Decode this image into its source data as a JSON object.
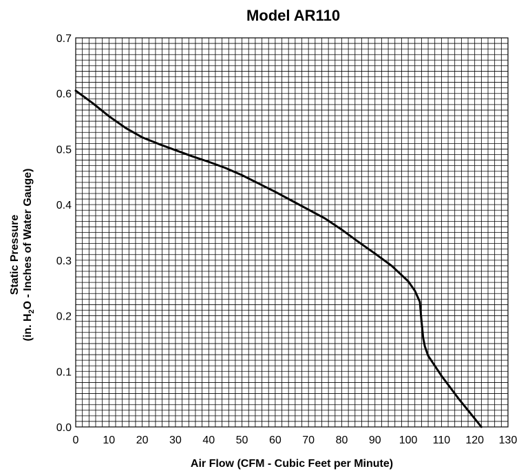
{
  "chart_data": {
    "type": "line",
    "title": "Model AR110",
    "xlabel": "Air Flow (CFM - Cubic Feet per Minute)",
    "ylabel": {
      "line1": "Static Pressure",
      "line2_prefix": "(in. H",
      "line2_sub": "2",
      "line2_suffix": "O - Inches of Water Gauge)"
    },
    "xlim": [
      0,
      130
    ],
    "ylim": [
      0,
      0.7
    ],
    "x_ticks": [
      "0",
      "10",
      "20",
      "30",
      "40",
      "50",
      "60",
      "70",
      "80",
      "90",
      "100",
      "110",
      "120",
      "130"
    ],
    "y_ticks": [
      "0.0",
      "0.1",
      "0.2",
      "0.3",
      "0.4",
      "0.5",
      "0.6",
      "0.7"
    ],
    "grid": true,
    "series": [
      {
        "x": [
          0,
          5,
          10,
          15,
          20,
          25,
          30,
          35,
          40,
          45,
          50,
          55,
          60,
          65,
          70,
          75,
          80,
          85,
          90,
          95,
          100,
          102,
          103.5,
          104,
          104.5,
          105,
          106,
          110,
          115,
          120,
          122
        ],
        "y": [
          0.605,
          0.583,
          0.559,
          0.538,
          0.521,
          0.509,
          0.498,
          0.487,
          0.477,
          0.466,
          0.453,
          0.438,
          0.423,
          0.407,
          0.391,
          0.375,
          0.355,
          0.333,
          0.312,
          0.29,
          0.262,
          0.245,
          0.225,
          0.19,
          0.16,
          0.145,
          0.128,
          0.092,
          0.052,
          0.015,
          0.0
        ]
      }
    ]
  }
}
